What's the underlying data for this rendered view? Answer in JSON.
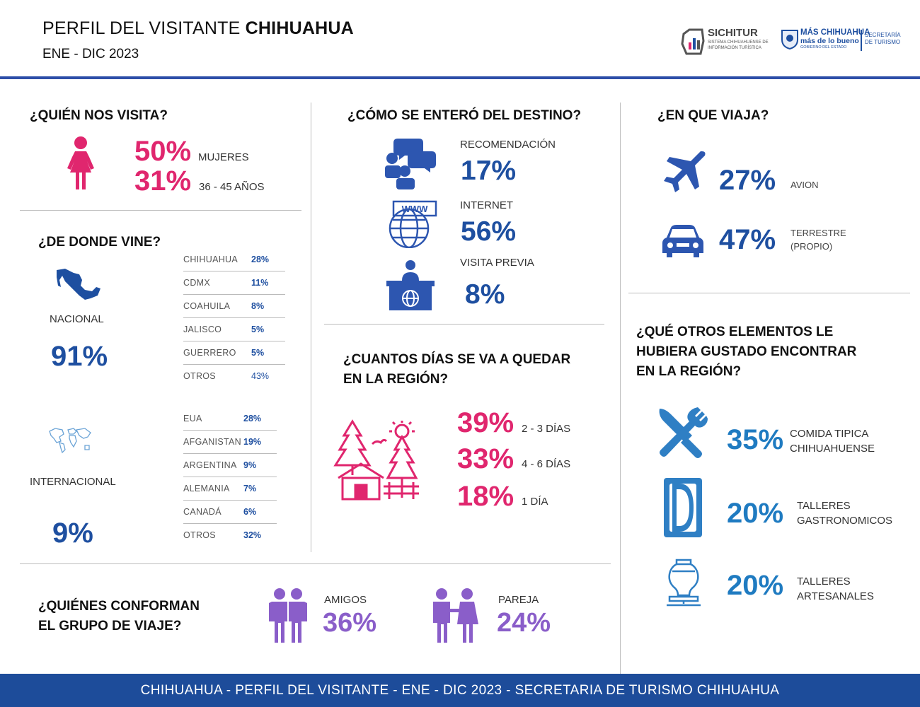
{
  "header": {
    "title_normal": "PERFIL DEL VISITANTE ",
    "title_bold": "CHIHUAHUA",
    "subtitle": "ENE - DIC 2023",
    "logo_sichitur": "SICHITUR",
    "logo_sichitur_sub1": "SISTEMA CHIHUAHUENSE DE",
    "logo_sichitur_sub2": "INFORMACIÓN TURÍSTICA",
    "logo_gob_line1": "MÁS CHIHUAHUA",
    "logo_gob_line2": "más de lo bueno",
    "logo_gob_line3": "GOBIERNO DEL ESTADO",
    "logo_sec_line1": "SECRETARÍA",
    "logo_sec_line2": "DE TURISMO"
  },
  "quien": {
    "heading": "¿QUIÉN NOS VISITA?",
    "women_pct": "50%",
    "women_label": "MUJERES",
    "age_pct": "31%",
    "age_label": "36 - 45 AÑOS"
  },
  "donde": {
    "heading": "¿DE DONDE VINE?",
    "nacional_label": "NACIONAL",
    "nacional_pct": "91%",
    "nacional_rows": [
      {
        "name": "CHIHUAHUA",
        "pct": "28%"
      },
      {
        "name": "CDMX",
        "pct": "11%"
      },
      {
        "name": "COAHUILA",
        "pct": "8%"
      },
      {
        "name": "JALISCO",
        "pct": "5%"
      },
      {
        "name": "GUERRERO",
        "pct": "5%"
      },
      {
        "name": "OTROS",
        "pct": "43%"
      }
    ],
    "internacional_label": "INTERNACIONAL",
    "internacional_pct": "9%",
    "internacional_rows": [
      {
        "name": "EUA",
        "pct": "28%"
      },
      {
        "name": "AFGANISTAN",
        "pct": "19%"
      },
      {
        "name": "ARGENTINA",
        "pct": "9%"
      },
      {
        "name": "ALEMANIA",
        "pct": "7%"
      },
      {
        "name": "CANADÁ",
        "pct": "6%"
      },
      {
        "name": "OTROS",
        "pct": "32%"
      }
    ]
  },
  "como": {
    "heading": "¿CÓMO SE ENTERÓ DEL DESTINO?",
    "items": [
      {
        "label": "RECOMENDACIÓN",
        "pct": "17%"
      },
      {
        "label": "INTERNET",
        "pct": "56%"
      },
      {
        "label": "VISITA PREVIA",
        "pct": "8%"
      }
    ]
  },
  "dias": {
    "heading_line1": "¿CUANTOS DÍAS SE VA A QUEDAR",
    "heading_line2": "EN LA REGIÓN?",
    "items": [
      {
        "pct": "39%",
        "label": "2 - 3 DÍAS"
      },
      {
        "pct": "33%",
        "label": "4 - 6 DÍAS"
      },
      {
        "pct": "18%",
        "label": "1 DÍA"
      }
    ]
  },
  "viaja": {
    "heading": "¿EN QUE VIAJA?",
    "avion_pct": "27%",
    "avion_label": "AVION",
    "terrestre_pct": "47%",
    "terrestre_label1": "TERRESTRE",
    "terrestre_label2": "(PROPIO)"
  },
  "otros": {
    "heading_line1": "¿QUÉ OTROS ELEMENTOS LE",
    "heading_line2": "HUBIERA GUSTADO ENCONTRAR",
    "heading_line3": "EN LA REGIÓN?",
    "items": [
      {
        "pct": "35%",
        "label1": "COMIDA TIPICA",
        "label2": "CHIHUAHUENSE"
      },
      {
        "pct": "20%",
        "label1": "TALLERES",
        "label2": "GASTRONOMICOS"
      },
      {
        "pct": "20%",
        "label1": "TALLERES",
        "label2": "ARTESANALES"
      }
    ]
  },
  "grupo": {
    "heading_line1": "¿QUIÉNES CONFORMAN",
    "heading_line2": "EL GRUPO DE VIAJE?",
    "amigos_label": "AMIGOS",
    "amigos_pct": "36%",
    "pareja_label": "PAREJA",
    "pareja_pct": "24%"
  },
  "footer": {
    "text": "CHIHUAHUA - PERFIL DEL VISITANTE - ENE - DIC 2023 - SECRETARIA DE TURISMO CHIHUAHUA"
  },
  "colors": {
    "pink": "#e0266e",
    "navy": "#1e4fa0",
    "sky": "#1f7bc1",
    "purple": "#8a5ec9",
    "footer": "#1d4c9a"
  }
}
